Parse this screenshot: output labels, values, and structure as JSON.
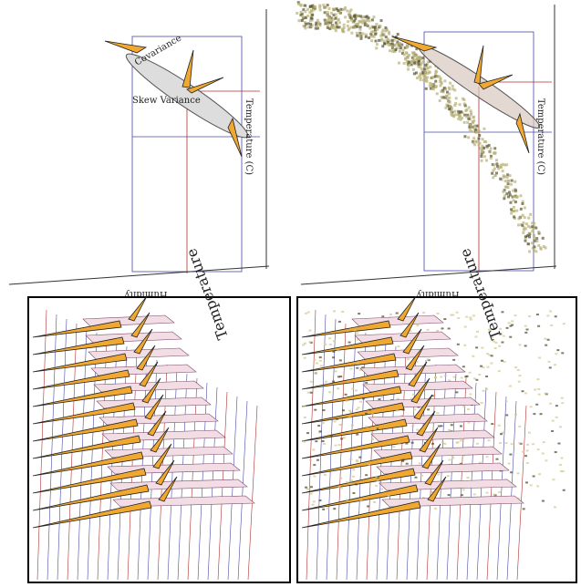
{
  "top_left": {
    "covariance": "Covariance",
    "skew_variance": "Skew Variance",
    "y_axis": "Temperature (C)",
    "x_axis": "Humidity"
  },
  "top_right": {
    "y_axis": "Temperature (C)",
    "x_axis": "Humidity"
  },
  "bottom_left": {
    "y_axis": "Temperature"
  },
  "bottom_right": {
    "y_axis": "Temperature"
  }
}
